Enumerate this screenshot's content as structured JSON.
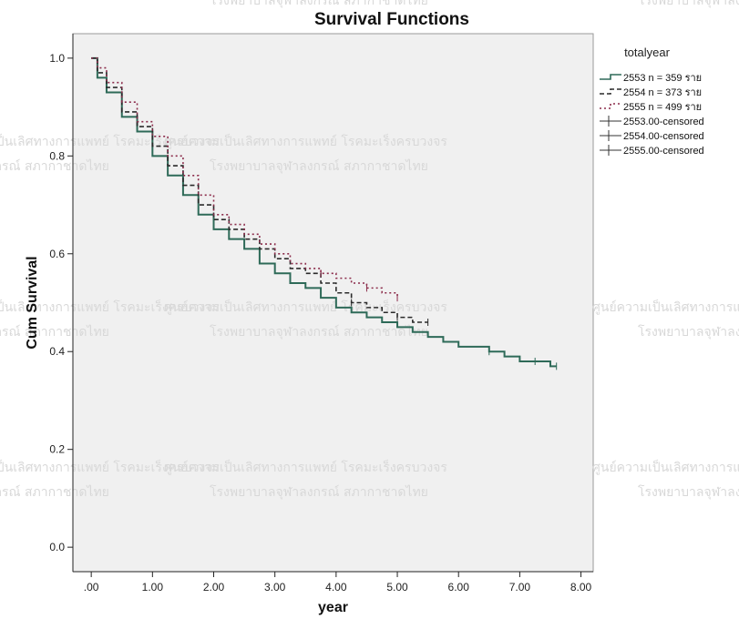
{
  "chart_data": {
    "type": "line",
    "title": "Survival Functions",
    "xlabel": "year",
    "ylabel": "Cum Survival",
    "xlim": [
      -0.3,
      8.2
    ],
    "ylim": [
      -0.05,
      1.05
    ],
    "x_ticks": [
      ".00",
      "1.00",
      "2.00",
      "3.00",
      "4.00",
      "5.00",
      "6.00",
      "7.00",
      "8.00"
    ],
    "y_ticks": [
      "0.0",
      "0.2",
      "0.4",
      "0.6",
      "0.8",
      "1.0"
    ],
    "legend": {
      "title": "totalyear",
      "placement": "right",
      "entries": [
        "2553 n = 359 ราย",
        "2554 n = 373 ราย",
        "2555 n = 499 ราย",
        "2553.00-censored",
        "2554.00-censored",
        "2555.00-censored"
      ]
    },
    "series": [
      {
        "name": "2553 n = 359 ราย",
        "color": "#2e6a58",
        "style": "solid",
        "x": [
          0,
          0.1,
          0.25,
          0.5,
          0.75,
          1.0,
          1.25,
          1.5,
          1.75,
          2.0,
          2.25,
          2.5,
          2.75,
          3.0,
          3.25,
          3.5,
          3.75,
          4.0,
          4.25,
          4.5,
          4.75,
          5.0,
          5.25,
          5.5,
          5.75,
          6.0,
          6.25,
          6.5,
          6.75,
          7.0,
          7.25,
          7.5,
          7.6
        ],
        "y": [
          1.0,
          0.96,
          0.93,
          0.88,
          0.85,
          0.8,
          0.76,
          0.72,
          0.68,
          0.65,
          0.63,
          0.61,
          0.58,
          0.56,
          0.54,
          0.53,
          0.51,
          0.49,
          0.48,
          0.47,
          0.46,
          0.45,
          0.44,
          0.43,
          0.42,
          0.41,
          0.41,
          0.4,
          0.39,
          0.38,
          0.38,
          0.37,
          0.37
        ]
      },
      {
        "name": "2554 n = 373 ราย",
        "color": "#2a2a2a",
        "style": "dashed",
        "x": [
          0,
          0.1,
          0.25,
          0.5,
          0.75,
          1.0,
          1.25,
          1.5,
          1.75,
          2.0,
          2.25,
          2.5,
          2.75,
          3.0,
          3.25,
          3.5,
          3.75,
          4.0,
          4.25,
          4.5,
          4.75,
          5.0,
          5.25,
          5.5
        ],
        "y": [
          1.0,
          0.97,
          0.94,
          0.89,
          0.86,
          0.82,
          0.78,
          0.74,
          0.7,
          0.67,
          0.65,
          0.63,
          0.61,
          0.59,
          0.57,
          0.56,
          0.54,
          0.52,
          0.5,
          0.49,
          0.48,
          0.47,
          0.46,
          0.46
        ]
      },
      {
        "name": "2555 n = 499 ราย",
        "color": "#8b2b4a",
        "style": "dotted",
        "x": [
          0,
          0.1,
          0.25,
          0.5,
          0.75,
          1.0,
          1.25,
          1.5,
          1.75,
          2.0,
          2.25,
          2.5,
          2.75,
          3.0,
          3.25,
          3.5,
          3.75,
          4.0,
          4.25,
          4.5,
          4.75,
          5.0
        ],
        "y": [
          1.0,
          0.98,
          0.95,
          0.91,
          0.87,
          0.84,
          0.8,
          0.76,
          0.72,
          0.68,
          0.66,
          0.64,
          0.62,
          0.6,
          0.58,
          0.57,
          0.56,
          0.55,
          0.54,
          0.53,
          0.52,
          0.51
        ]
      }
    ]
  },
  "watermarks": [
    "ศูนย์ความเป็นเลิศทางการแพทย์ โรคมะเร็งครบวงจร",
    "โรงพยาบาลจุฬาลงกรณ์ สภากาชาดไทย"
  ],
  "colors": {
    "plot_bg": "#f0f0f0",
    "axis": "#222222"
  }
}
